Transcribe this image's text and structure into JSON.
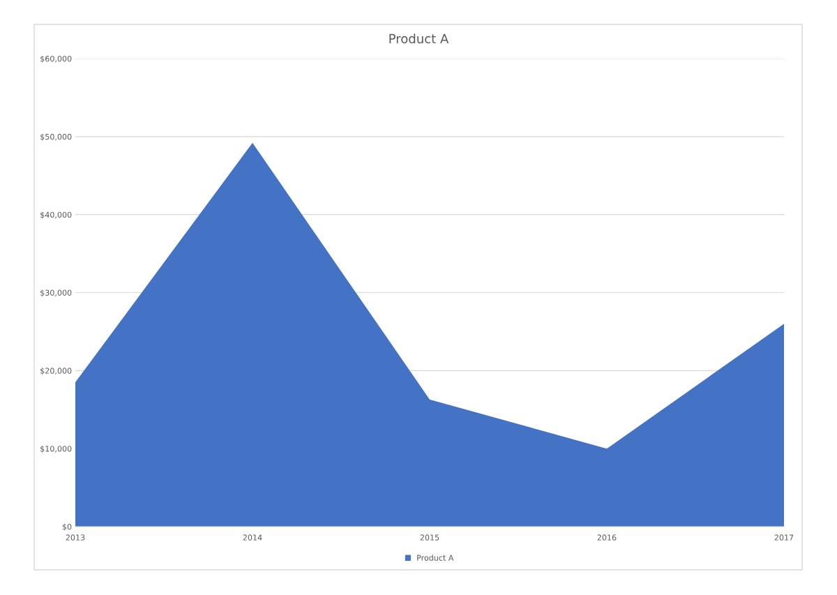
{
  "chart_data": {
    "type": "area",
    "title": "Product A",
    "categories": [
      "2013",
      "2014",
      "2015",
      "2016",
      "2017"
    ],
    "series": [
      {
        "name": "Product A",
        "color": "#4472c4",
        "values": [
          18500,
          49200,
          16300,
          10000,
          26000
        ]
      }
    ],
    "ylim": [
      0,
      60000
    ],
    "yticks": [
      {
        "value": 0,
        "label": "$0"
      },
      {
        "value": 10000,
        "label": "$10,000"
      },
      {
        "value": 20000,
        "label": "$20,000"
      },
      {
        "value": 30000,
        "label": "$30,000"
      },
      {
        "value": 40000,
        "label": "$40,000"
      },
      {
        "value": 50000,
        "label": "$50,000"
      },
      {
        "value": 60000,
        "label": "$60,000"
      }
    ],
    "grid": "y",
    "legend": "bottom"
  }
}
